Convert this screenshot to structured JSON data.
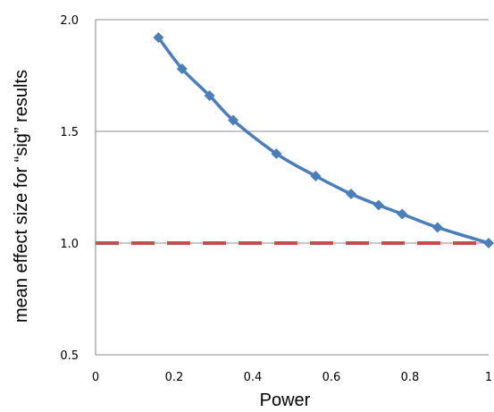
{
  "chart_data": {
    "type": "line",
    "title": "",
    "xlabel": "Power",
    "ylabel": "mean effect size for “sig” results",
    "xlim": [
      0,
      1
    ],
    "ylim": [
      0.5,
      2.0
    ],
    "x_ticks": [
      {
        "value": 0,
        "label": "0"
      },
      {
        "value": 0.2,
        "label": "0.2"
      },
      {
        "value": 0.4,
        "label": "0.4"
      },
      {
        "value": 0.6,
        "label": "0.6"
      },
      {
        "value": 0.8,
        "label": "0.8"
      },
      {
        "value": 1,
        "label": "1"
      }
    ],
    "y_ticks": [
      {
        "value": 0.5,
        "label": "0.5"
      },
      {
        "value": 1.0,
        "label": "1.0"
      },
      {
        "value": 1.5,
        "label": "1.5"
      },
      {
        "value": 2.0,
        "label": "2.0"
      }
    ],
    "grid": "horizontal",
    "legend": "none",
    "series": [
      {
        "marker": "diamond",
        "color": "#4a7ebb",
        "x": [
          0.16,
          0.22,
          0.29,
          0.35,
          0.46,
          0.56,
          0.65,
          0.72,
          0.78,
          0.87,
          1.0
        ],
        "y": [
          1.92,
          1.78,
          1.66,
          1.55,
          1.4,
          1.3,
          1.22,
          1.17,
          1.13,
          1.07,
          1.0
        ]
      }
    ],
    "reference_lines": [
      {
        "axis": "y",
        "value": 1.0,
        "style": "dashed",
        "color": "#c0504d"
      }
    ]
  }
}
